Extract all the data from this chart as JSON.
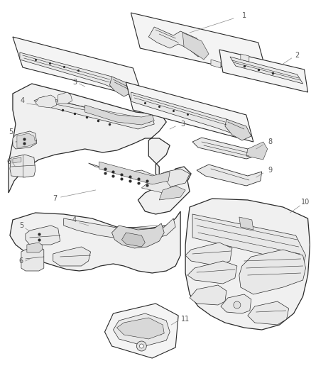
{
  "bg_color": "#ffffff",
  "lc": "#2a2a2a",
  "lc_light": "#666666",
  "lw": 0.7,
  "lw_thin": 0.4,
  "fill_panel": "#f6f6f6",
  "fill_part": "#e8e8e8",
  "fill_dark": "#d8d8d8",
  "fill_white": "#ffffff",
  "label_color": "#555555",
  "label_fs": 7,
  "note_fs": 6.5,
  "fig_w": 4.38,
  "fig_h": 5.33,
  "dpi": 100
}
